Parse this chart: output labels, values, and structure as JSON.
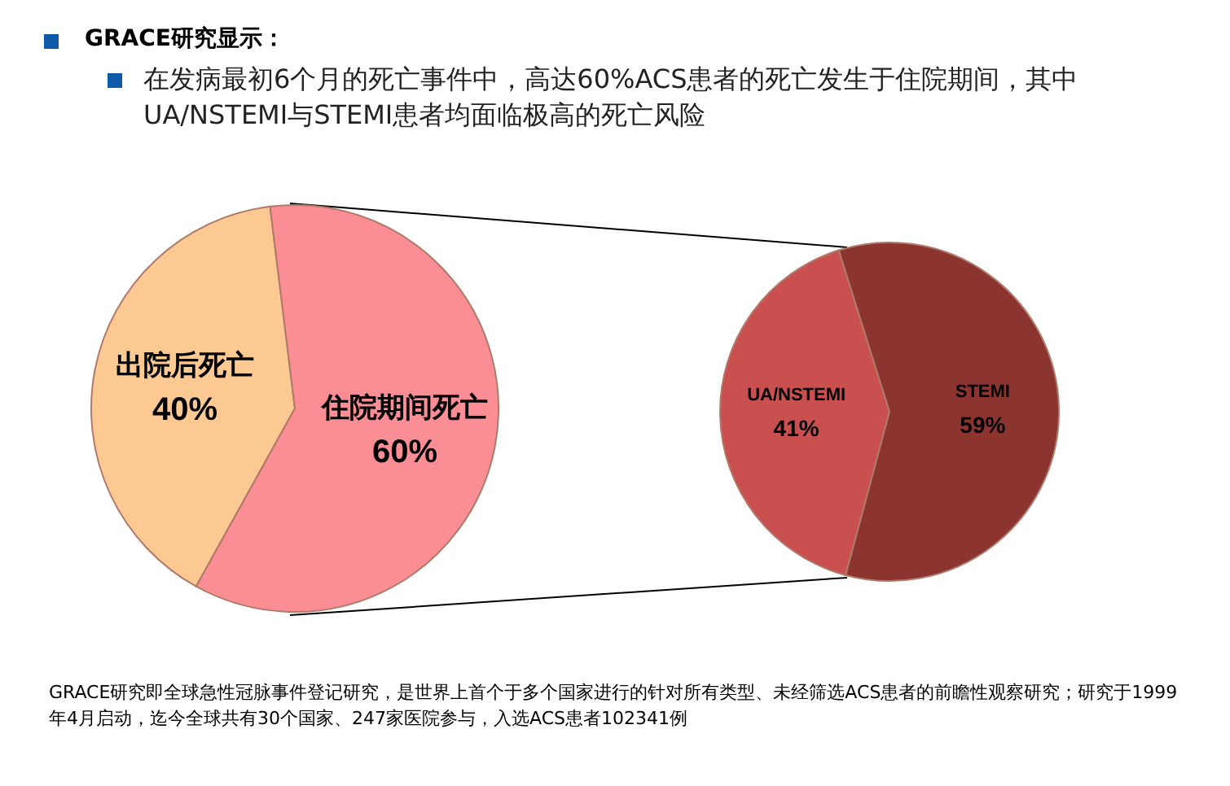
{
  "chart_data": [
    {
      "type": "pie",
      "title": "GRACE研究显示：",
      "subtitle": "在发病最初6个月的死亡事件中，高达60%ACS患者的死亡发生于住院期间，其中UA/NSTEMI与STEMI患者均面临极高的死亡风险",
      "categories": [
        "出院后死亡",
        "住院期间死亡"
      ],
      "values": [
        40,
        60
      ],
      "colors": [
        "#fdc992",
        "#fb8e94"
      ],
      "value_labels": [
        "40%",
        "60%"
      ],
      "annotations": [
        "GRACE研究即全球急性冠脉事件登记研究，是世界上首个于多个国家进行的针对所有类型、未经筛选ACS患者的前瞻性观察研究；研究于1999年4月启动，迄今全球共有30个国家、247家医院参与，入选ACS患者102341例"
      ]
    },
    {
      "type": "pie",
      "categories": [
        "UA/NSTEMI",
        "STEMI"
      ],
      "values": [
        41,
        59
      ],
      "colors": [
        "#c9504f",
        "#8b3430"
      ],
      "value_labels": [
        "41%",
        "59%"
      ]
    }
  ]
}
